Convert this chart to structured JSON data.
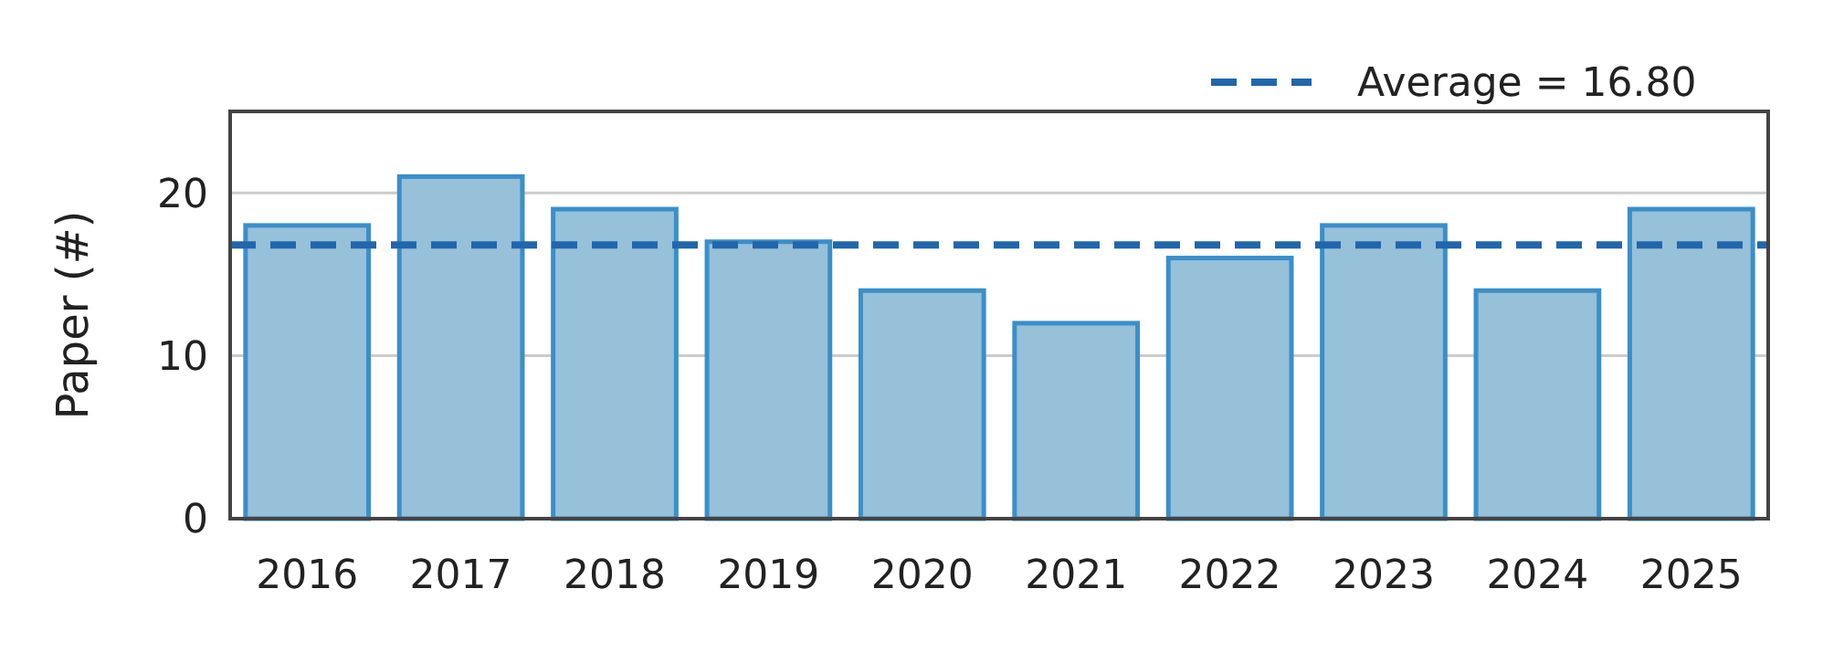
{
  "chart_data": {
    "type": "bar",
    "ylabel": "Paper (#)",
    "categories": [
      "2016",
      "2017",
      "2018",
      "2019",
      "2020",
      "2021",
      "2022",
      "2023",
      "2024",
      "2025"
    ],
    "values": [
      18,
      21,
      19,
      17,
      14,
      12,
      16,
      18,
      14,
      19
    ],
    "color": "#97c0d9",
    "ylim": [
      0,
      25
    ],
    "yticks": [
      0,
      10,
      20
    ],
    "grid": "y",
    "ref_lines": [
      {
        "axis": "y",
        "value": 16.8,
        "label": "Average = 16.80",
        "color": "#2166ac",
        "line_style": "dashed"
      }
    ],
    "legend": "top right"
  }
}
